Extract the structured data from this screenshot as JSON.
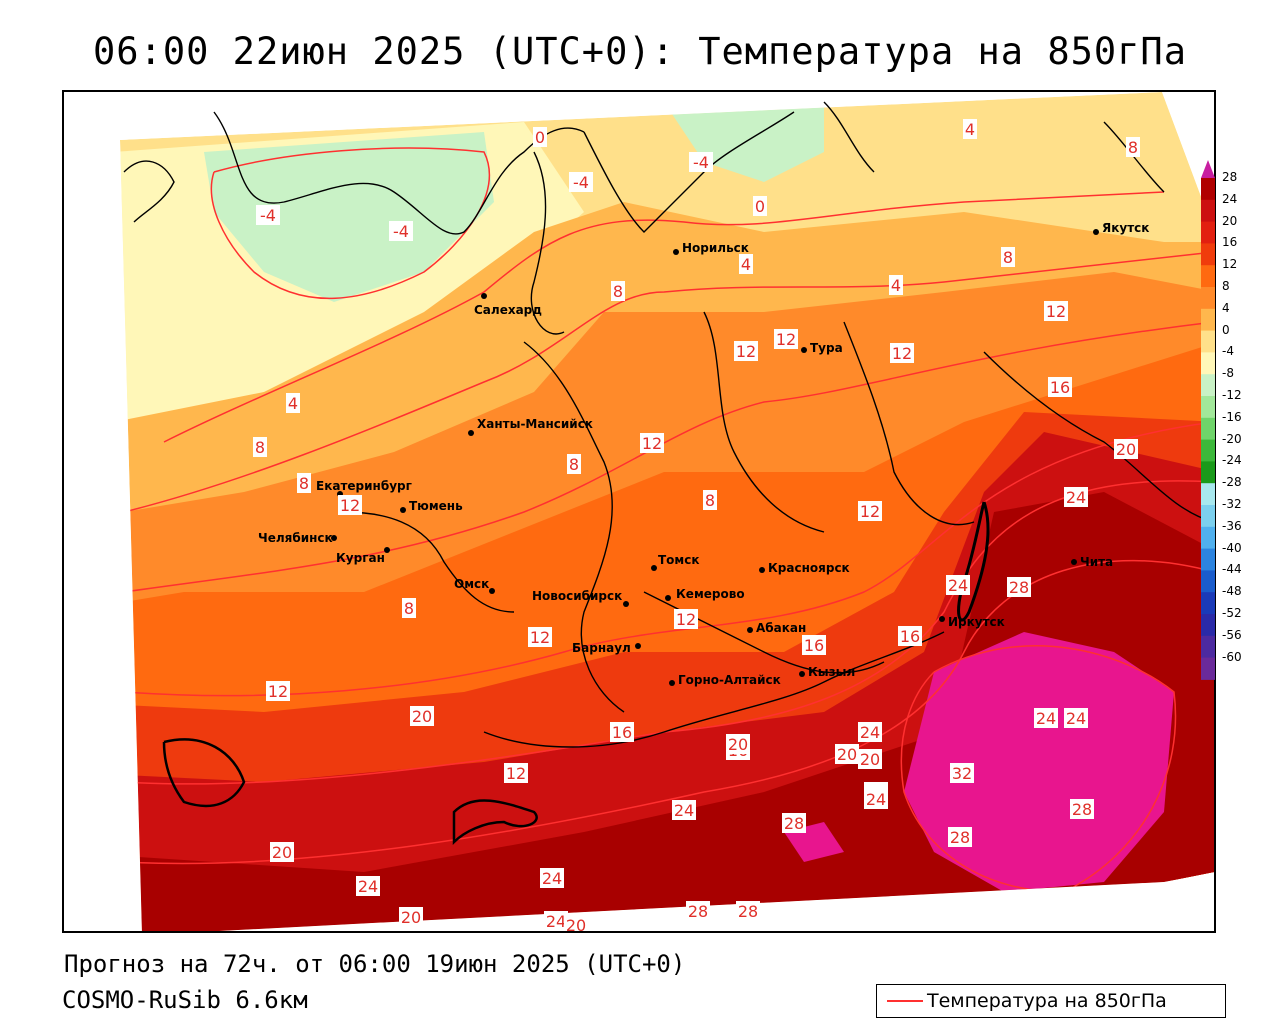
{
  "title": "06:00 22июн 2025 (UTC+0): Температура на 850гПа",
  "footer": {
    "forecast": "Прогноз на 72ч. от 06:00 19июн 2025 (UTC+0)",
    "model": "COSMO-RuSib 6.6км",
    "legend_label": "Температура на 850гПа",
    "legend_color": "#ff3030"
  },
  "colorbar": {
    "ticks": [
      "28",
      "24",
      "20",
      "16",
      "12",
      "8",
      "4",
      "0",
      "-4",
      "-8",
      "-12",
      "-16",
      "-20",
      "-24",
      "-28",
      "-32",
      "-36",
      "-40",
      "-44",
      "-48",
      "-52",
      "-56",
      "-60"
    ]
  },
  "cities": [
    {
      "name": "Якутск"
    },
    {
      "name": "Норильск"
    },
    {
      "name": "Салехард"
    },
    {
      "name": "Тура"
    },
    {
      "name": "Ханты-Мансийск"
    },
    {
      "name": "Екатеринбург"
    },
    {
      "name": "Тюмень"
    },
    {
      "name": "Челябинск"
    },
    {
      "name": "Курган"
    },
    {
      "name": "Омск"
    },
    {
      "name": "Томск"
    },
    {
      "name": "Красноярск"
    },
    {
      "name": "Новосибирск"
    },
    {
      "name": "Кемерово"
    },
    {
      "name": "Абакан"
    },
    {
      "name": "Барнаул"
    },
    {
      "name": "Иркутск"
    },
    {
      "name": "Чита"
    },
    {
      "name": "Горно-Алтайск"
    },
    {
      "name": "Кызыл"
    }
  ],
  "isotherm_labels": [
    "0",
    "-4",
    "-4",
    "-4",
    "-4",
    "0",
    "4",
    "8",
    "4",
    "8",
    "4",
    "8",
    "12",
    "12",
    "12",
    "12",
    "16",
    "8",
    "4",
    "8",
    "8",
    "12",
    "8",
    "12",
    "12",
    "12",
    "20",
    "24",
    "24",
    "16",
    "16",
    "12",
    "20",
    "16",
    "12",
    "16",
    "20",
    "24",
    "20",
    "24",
    "28",
    "24",
    "32",
    "28",
    "28",
    "24",
    "24",
    "20",
    "20",
    "24",
    "28",
    "28",
    "24",
    "20",
    "24",
    "20",
    "20",
    "28",
    "24",
    "12",
    "8"
  ]
}
